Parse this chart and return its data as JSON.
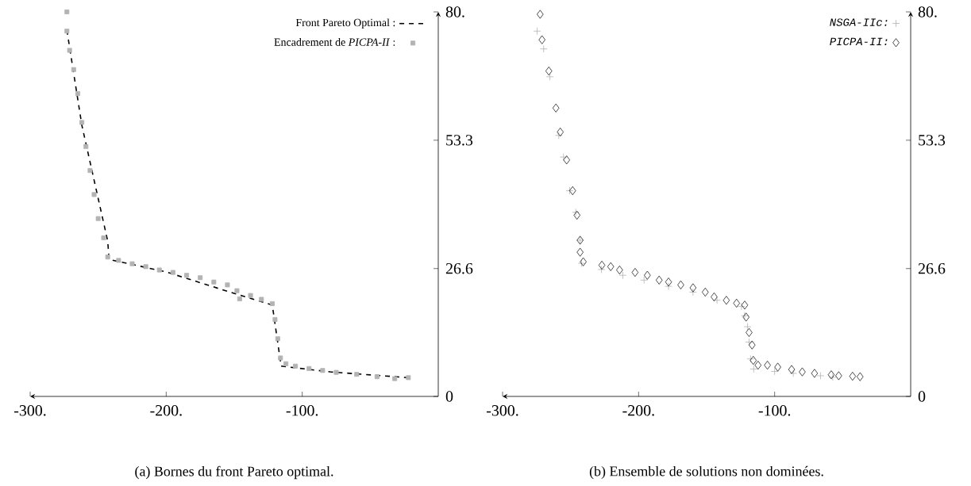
{
  "chart_data": [
    {
      "type": "line",
      "xlim": [
        -300,
        0
      ],
      "ylim": [
        0,
        80
      ],
      "xticks": [
        {
          "value": -300,
          "label": "-300."
        },
        {
          "value": -200,
          "label": "-200."
        },
        {
          "value": -100,
          "label": "-100."
        }
      ],
      "yticks": [
        0,
        26.6,
        53.3,
        {
          "value": 80,
          "label": "80."
        }
      ],
      "legend": "top right",
      "annotations": [
        "(a) Bornes du front Pareto optimal."
      ],
      "series": [
        {
          "name": "Front Pareto Optimal :",
          "type": "line",
          "color": "#000000",
          "line_style": "dashed",
          "marker": "none",
          "x": [
            -273,
            -262,
            -243,
            -242,
            -200,
            -148.6,
            -122,
            -115.5,
            -79.4,
            -22.3
          ],
          "values": [
            76.2,
            56.4,
            32.3,
            28.5,
            25.9,
            21.3,
            19,
            6.3,
            5.1,
            3.9
          ]
        },
        {
          "name": "Encadrement de *PICPA-II* :",
          "type": "scatter",
          "color": "#b3b3b3",
          "marker": "square",
          "x": [
            -273,
            -273,
            -271,
            -268,
            -265,
            -262,
            -259,
            -256,
            -253,
            -250,
            -246,
            -243,
            -235,
            -225,
            -215,
            -205,
            -195,
            -185,
            -175,
            -165,
            -155,
            -148,
            -146,
            -138,
            -130,
            -122,
            -120,
            -118,
            -116,
            -112,
            -105,
            -95,
            -85,
            -75,
            -60,
            -45,
            -32,
            -22
          ],
          "values": [
            80,
            76,
            72,
            68,
            63,
            57,
            52,
            47,
            42,
            37,
            33,
            29,
            28.3,
            27.6,
            27,
            26.3,
            25.8,
            25.2,
            24.7,
            23.8,
            23.2,
            22,
            20.3,
            21,
            20.2,
            19.3,
            16,
            12,
            8,
            6.8,
            6.3,
            5.8,
            5.4,
            5,
            4.6,
            4.1,
            3.7,
            3.9
          ]
        }
      ]
    },
    {
      "type": "scatter",
      "xlim": [
        -300,
        0
      ],
      "ylim": [
        0,
        80
      ],
      "xticks": [
        {
          "value": -300,
          "label": "-300."
        },
        {
          "value": -200,
          "label": "-200."
        },
        {
          "value": -100,
          "label": "-100."
        }
      ],
      "yticks": [
        0,
        26.6,
        53.3,
        {
          "value": 80,
          "label": "80."
        }
      ],
      "legend": "top right",
      "annotations": [
        "(b) Ensemble de solutions non dominées."
      ],
      "series": [
        {
          "name": "NSGA-IIc:",
          "color": "#b3b3b3",
          "marker": "cross",
          "x": [
            -274.6,
            -269.8,
            -265.2,
            -258.7,
            -255.2,
            -250.7,
            -246.2,
            -243,
            -241.9,
            -227.3,
            -211.6,
            -196,
            -178,
            -160,
            -142.4,
            -124.4,
            -122,
            -119.9,
            -118.8,
            -117.7,
            -115.4,
            -100,
            -86.3,
            -66.3,
            -57.3
          ],
          "values": [
            76,
            72.3,
            66.5,
            54.3,
            49.8,
            42.8,
            38.3,
            32.5,
            27.7,
            26.4,
            25.2,
            24.2,
            22.9,
            21.7,
            20,
            18.7,
            16.8,
            14.5,
            11.3,
            7.8,
            5.7,
            5.2,
            4.8,
            4.3,
            4
          ]
        },
        {
          "name": "PICPA-II:",
          "color": "#000000",
          "marker": "diamond",
          "x": [
            -272.4,
            -271,
            -266,
            -260.8,
            -257.6,
            -252.9,
            -248.5,
            -245.3,
            -243,
            -243,
            -240.7,
            -227,
            -220.5,
            -214,
            -202.6,
            -193.6,
            -184.9,
            -178,
            -169,
            -160,
            -151,
            -144.5,
            -135.5,
            -128,
            -122,
            -121,
            -118.8,
            -116.6,
            -115.7,
            -112.2,
            -105.3,
            -97.7,
            -87.5,
            -79.7,
            -70.7,
            -58.4,
            -52.9,
            -42.7,
            -37.2
          ],
          "values": [
            79.5,
            74.2,
            67.7,
            60,
            55,
            49.2,
            42.8,
            37.7,
            32.5,
            30,
            28,
            27.3,
            27,
            26.3,
            25.8,
            25.2,
            24.2,
            23.8,
            23.2,
            22.6,
            21.7,
            20.7,
            20,
            19.4,
            19,
            16.5,
            13.3,
            10.7,
            7.5,
            6.5,
            6.5,
            6.1,
            5.6,
            5.1,
            4.8,
            4.5,
            4.3,
            4.2,
            4.1
          ]
        }
      ]
    }
  ]
}
